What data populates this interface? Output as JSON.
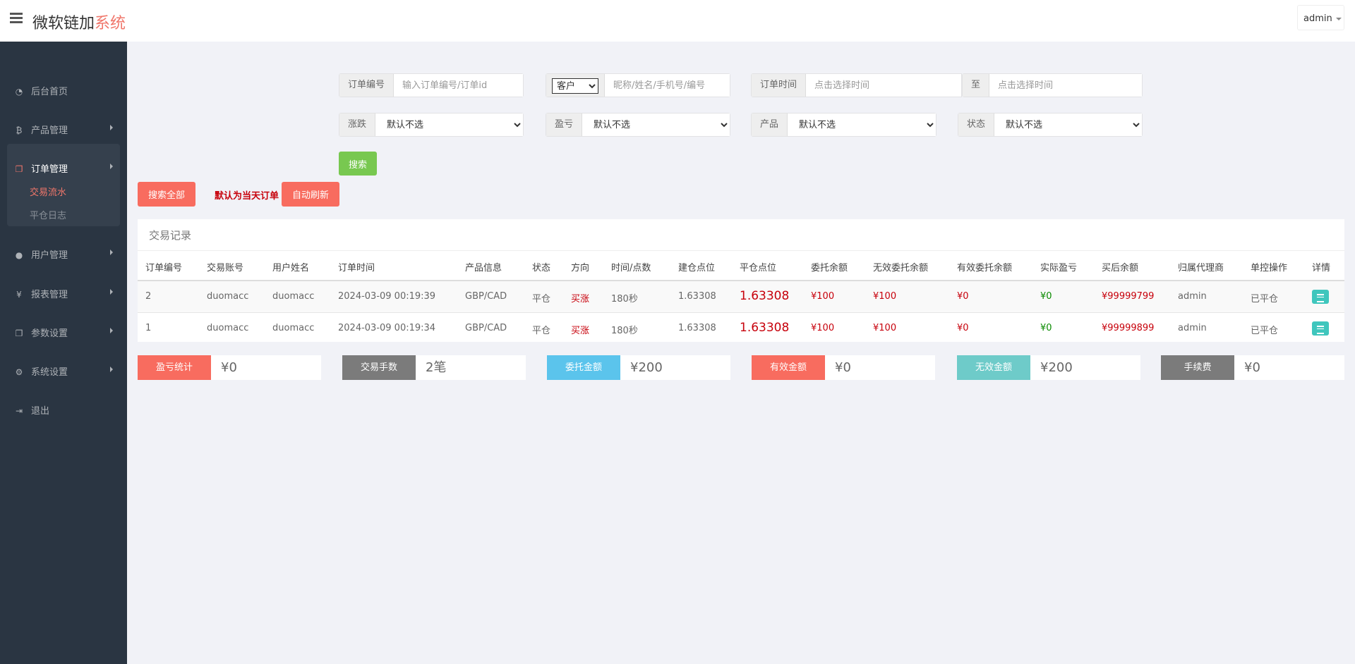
{
  "header": {
    "title_main": "微软链加",
    "title_accent": "系统",
    "user": "admin"
  },
  "sidebar": {
    "items": [
      {
        "label": "后台首页",
        "icon": "dashboard-icon",
        "glyph": "◔"
      },
      {
        "label": "产品管理",
        "icon": "bitcoin-icon",
        "glyph": "₿"
      },
      {
        "label": "订单管理",
        "icon": "copy-icon",
        "glyph": "❐"
      },
      {
        "label": "用户管理",
        "icon": "user-icon",
        "glyph": "●"
      },
      {
        "label": "报表管理",
        "icon": "yen-icon",
        "glyph": "¥"
      },
      {
        "label": "参数设置",
        "icon": "copy-icon",
        "glyph": "❐"
      },
      {
        "label": "系统设置",
        "icon": "gears-icon",
        "glyph": "⚙"
      },
      {
        "label": "退出",
        "icon": "sign-out-icon",
        "glyph": "⇥"
      }
    ],
    "sub": [
      "交易流水",
      "平仓日志"
    ]
  },
  "filters": {
    "order_no_label": "订单编号",
    "order_no_placeholder": "输入订单编号/订单id",
    "customer_select": "客户",
    "customer_placeholder": "昵称/姓名/手机号/编号",
    "time_label": "订单时间",
    "time_placeholder": "点击选择时间",
    "to_label": "至",
    "time_to_placeholder": "点击选择时间",
    "rise_label": "涨跌",
    "pnl_label": "盈亏",
    "product_label": "产品",
    "status_label": "状态",
    "default_option": "默认不选",
    "search": "搜索",
    "search_all": "搜索全部",
    "default_note": "默认为当天订单",
    "auto_refresh": "自动刷新"
  },
  "table": {
    "title": "交易记录",
    "columns": [
      "订单编号",
      "交易账号",
      "用户姓名",
      "订单时间",
      "产品信息",
      "状态",
      "方向",
      "时间/点数",
      "建仓点位",
      "平仓点位",
      "委托余额",
      "无效委托余额",
      "有效委托余额",
      "实际盈亏",
      "买后余额",
      "归属代理商",
      "单控操作",
      "详情"
    ],
    "rows": [
      [
        "2",
        "duomacc",
        "duomacc",
        "2024-03-09 00:19:39",
        "GBP/CAD",
        "平仓",
        "买涨",
        "180秒",
        "1.63308",
        "1.63308",
        "¥100",
        "¥100",
        "¥0",
        "¥0",
        "¥99999799",
        "admin",
        "已平仓"
      ],
      [
        "1",
        "duomacc",
        "duomacc",
        "2024-03-09 00:19:34",
        "GBP/CAD",
        "平仓",
        "买涨",
        "180秒",
        "1.63308",
        "1.63308",
        "¥100",
        "¥100",
        "¥0",
        "¥0",
        "¥99999899",
        "admin",
        "已平仓"
      ]
    ]
  },
  "stats": [
    {
      "label": "盈亏统计",
      "value": "¥0",
      "color": "#f86c5f"
    },
    {
      "label": "交易手数",
      "value": "2笔",
      "color": "#7b7b7b"
    },
    {
      "label": "委托金额",
      "value": "¥200",
      "color": "#5bc4ec"
    },
    {
      "label": "有效金额",
      "value": "¥0",
      "color": "#f86c5f"
    },
    {
      "label": "无效金额",
      "value": "¥200",
      "color": "#6ecbc9"
    },
    {
      "label": "手续费",
      "value": "¥0",
      "color": "#7b7b7b"
    }
  ]
}
